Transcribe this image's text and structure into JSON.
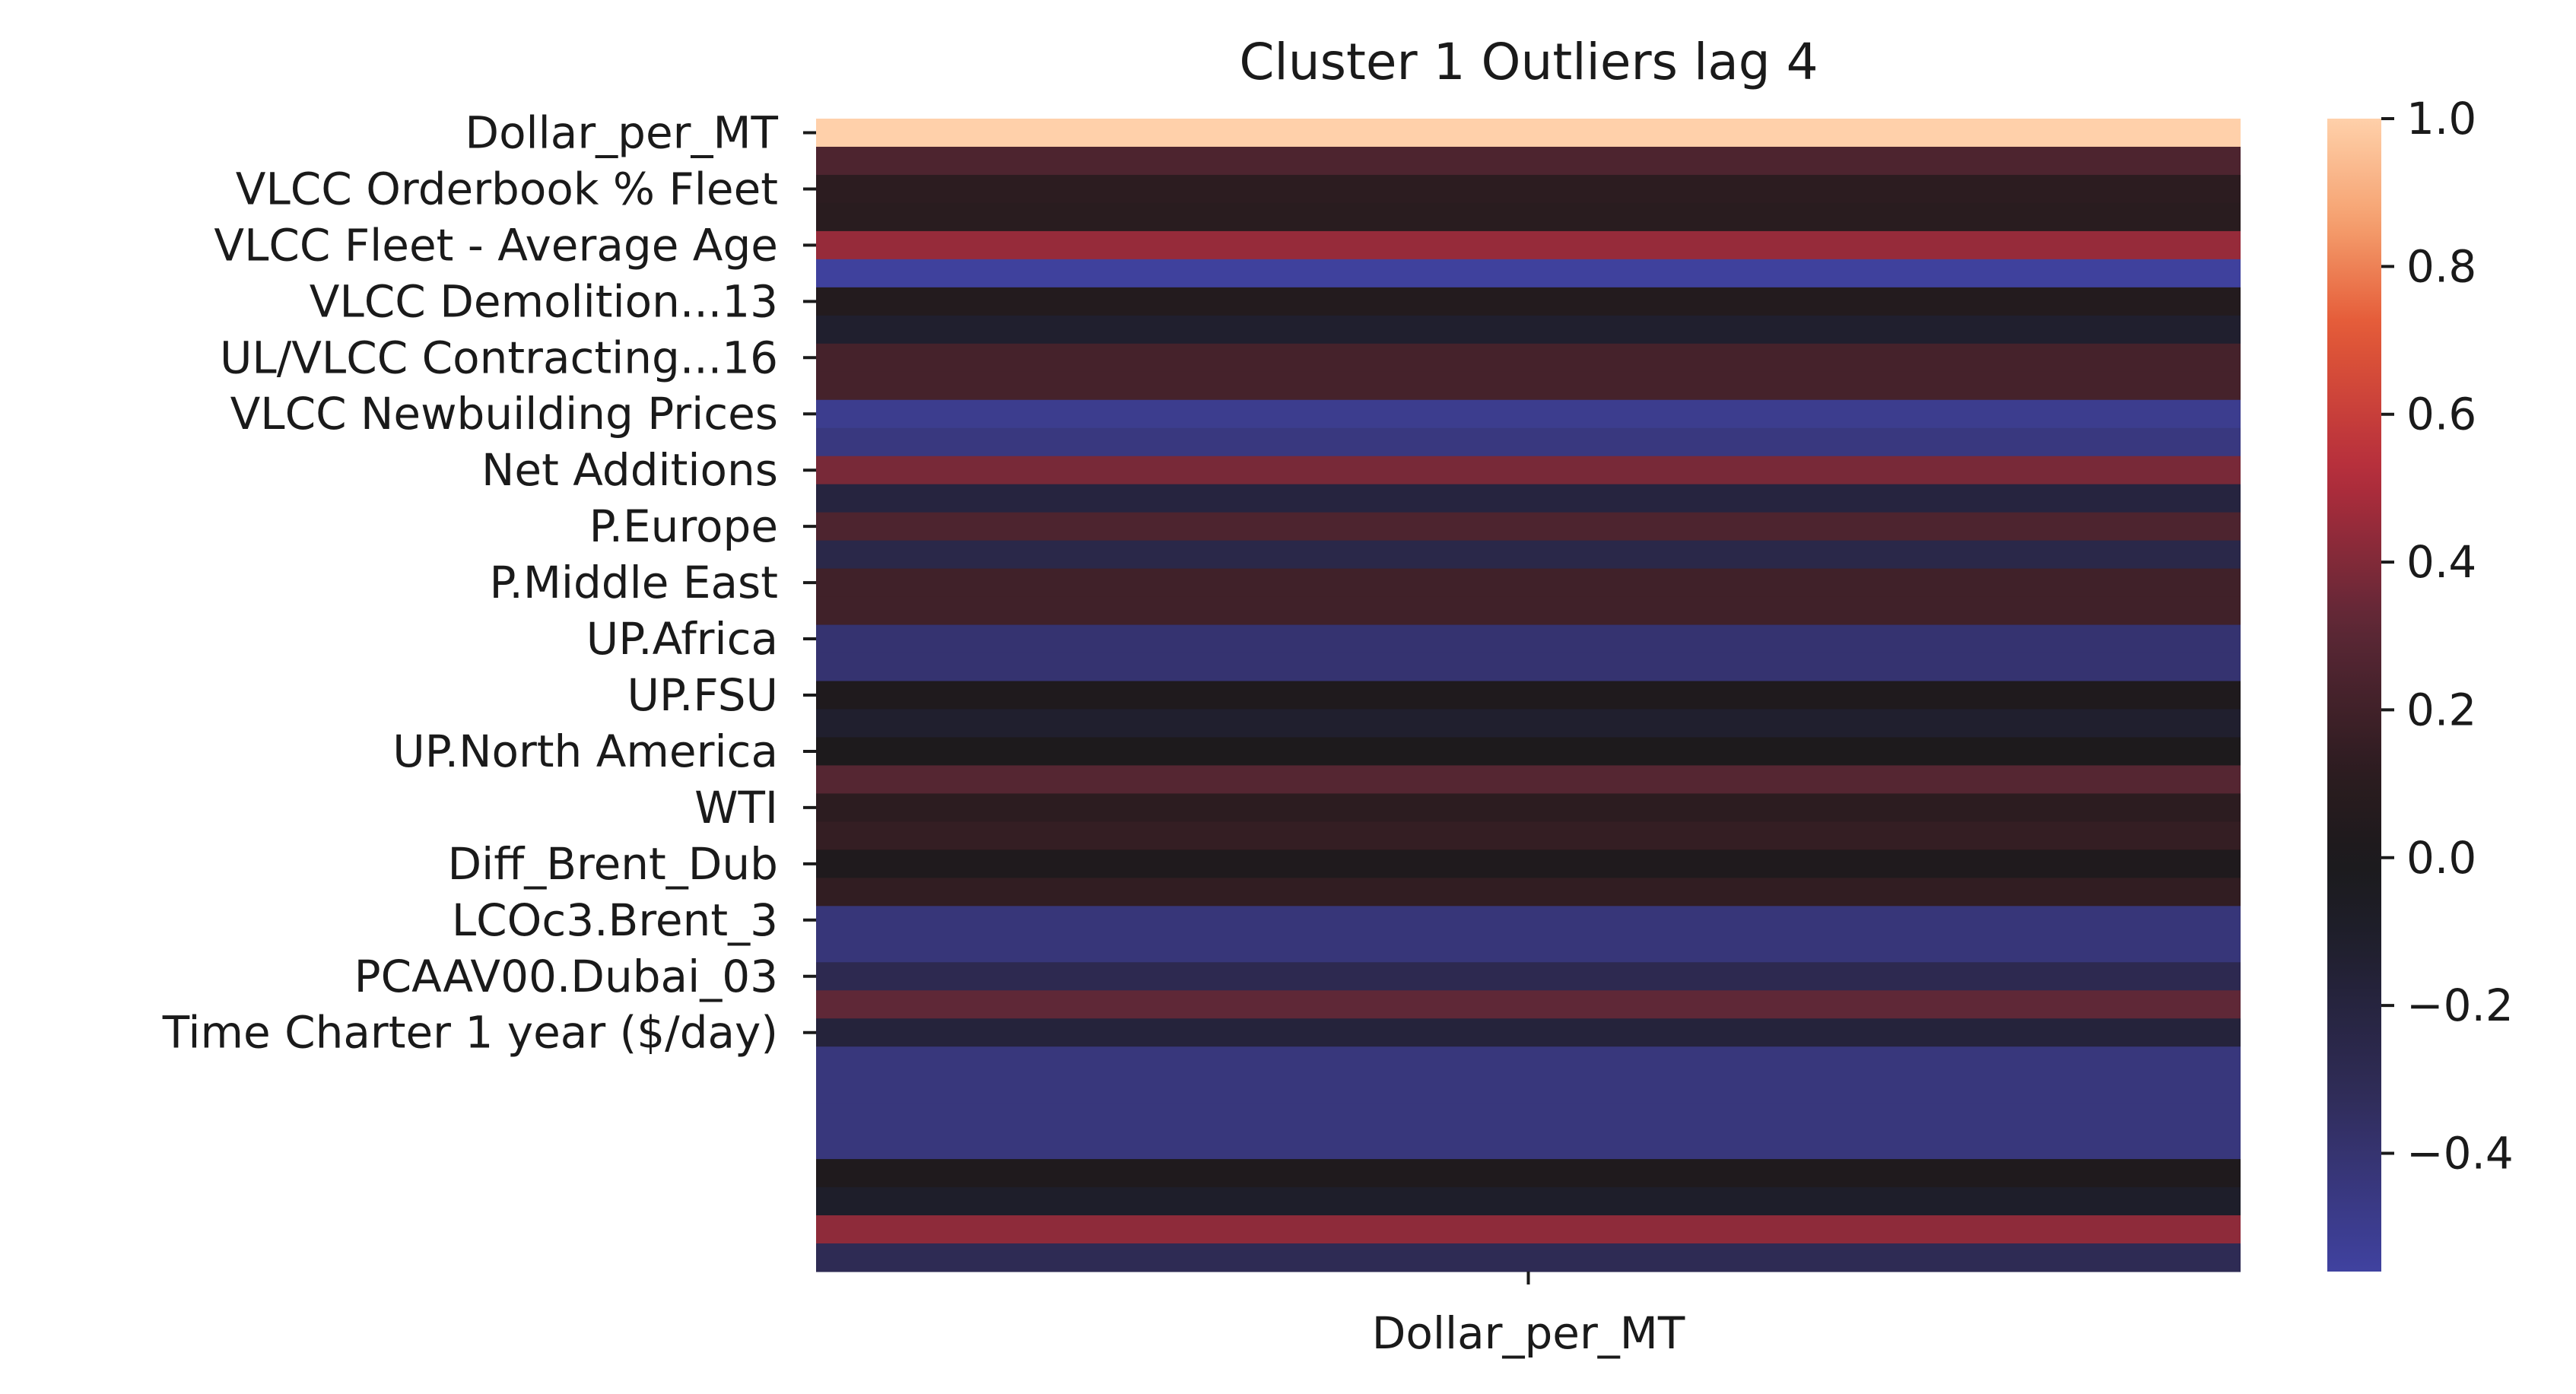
{
  "chart_data": {
    "type": "heatmap",
    "title": "Cluster 1 Outliers lag 4",
    "columns": [
      "Dollar_per_MT"
    ],
    "row_tick_labels": [
      "Dollar_per_MT",
      "VLCC Orderbook % Fleet",
      "VLCC Fleet - Average Age",
      "VLCC Demolition...13",
      "UL/VLCC Contracting...16",
      "VLCC Newbuilding Prices",
      "Net Additions",
      "P.Europe",
      "P.Middle East",
      "UP.Africa",
      "UP.FSU",
      "UP.North America",
      "WTI",
      "Diff_Brent_Dub",
      "LCOc3.Brent_3",
      "PCAAV00.Dubai_03",
      "Time Charter 1 year ($/day)"
    ],
    "tick_label_every": 2,
    "values": [
      1.0,
      0.25,
      0.12,
      0.1,
      0.45,
      -0.55,
      0.05,
      -0.12,
      0.22,
      0.22,
      -0.5,
      -0.45,
      0.38,
      -0.2,
      0.25,
      -0.25,
      0.2,
      0.2,
      -0.4,
      -0.4,
      0.02,
      -0.12,
      0.01,
      0.28,
      0.12,
      0.15,
      0.02,
      0.14,
      -0.43,
      -0.43,
      -0.28,
      0.32,
      -0.18,
      -0.44,
      -0.44,
      -0.44,
      -0.44,
      0.02,
      -0.1,
      0.43,
      -0.3
    ],
    "colorbar": {
      "min": -0.56,
      "max": 1.0,
      "ticks": [
        1.0,
        0.8,
        0.6,
        0.4,
        0.2,
        0.0,
        -0.2,
        -0.4
      ],
      "tick_labels": [
        "1.0",
        "0.8",
        "0.6",
        "0.4",
        "0.2",
        "0.0",
        "−0.2",
        "−0.4"
      ]
    },
    "colormap": "icefire"
  }
}
